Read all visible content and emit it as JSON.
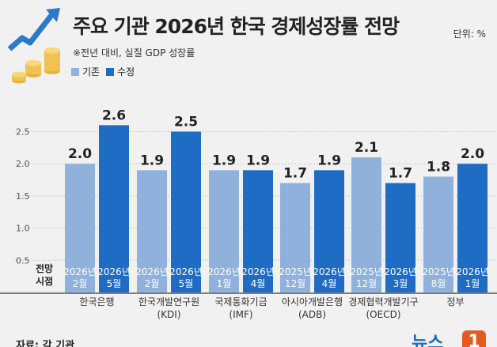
{
  "header": {
    "title": "주요 기관 2026년 한국 경제성장률 전망",
    "subtitle": "※전년 대비, 실질 GDP 성장률",
    "unit": "단위: %",
    "source": "자료: 각 기관",
    "logo_text": "뉴스",
    "logo_mark": "1"
  },
  "colors": {
    "prev": "#8fb1dc",
    "revised": "#1f6cc4",
    "background": "#f1f1f2"
  },
  "chart_data": {
    "type": "bar",
    "title": "주요 기관 2026년 한국 경제성장률 전망",
    "ylim": [
      0,
      3.0
    ],
    "yticks": [
      "0.5",
      "1.0",
      "1.5",
      "2.0",
      "2.5"
    ],
    "grid": true,
    "legend_position": "top-left",
    "row_label_lines": [
      "전망",
      "시점"
    ],
    "series": [
      {
        "name": "기존",
        "color": "#8fb1dc"
      },
      {
        "name": "수정",
        "color": "#1f6cc4"
      }
    ],
    "groups": [
      {
        "label": [
          "한국은행"
        ],
        "bars": [
          {
            "value": 2.0,
            "label": "2.0",
            "date": [
              "2026년",
              "2월"
            ]
          },
          {
            "value": 2.6,
            "label": "2.6",
            "date": [
              "2026년",
              "5월"
            ]
          }
        ]
      },
      {
        "label": [
          "한국개발연구원",
          "(KDI)"
        ],
        "bars": [
          {
            "value": 1.9,
            "label": "1.9",
            "date": [
              "2026년",
              "2월"
            ]
          },
          {
            "value": 2.5,
            "label": "2.5",
            "date": [
              "2026년",
              "5월"
            ]
          }
        ]
      },
      {
        "label": [
          "국제통화기금",
          "(IMF)"
        ],
        "bars": [
          {
            "value": 1.9,
            "label": "1.9",
            "date": [
              "2026년",
              "1월"
            ]
          },
          {
            "value": 1.9,
            "label": "1.9",
            "date": [
              "2026년",
              "4월"
            ]
          }
        ]
      },
      {
        "label": [
          "아시아개발은행",
          "(ADB)"
        ],
        "bars": [
          {
            "value": 1.7,
            "label": "1.7",
            "date": [
              "2025년",
              "12월"
            ]
          },
          {
            "value": 1.9,
            "label": "1.9",
            "date": [
              "2026년",
              "4월"
            ]
          }
        ]
      },
      {
        "label": [
          "경제협력개발기구",
          "(OECD)"
        ],
        "bars": [
          {
            "value": 2.1,
            "label": "2.1",
            "date": [
              "2025년",
              "12월"
            ]
          },
          {
            "value": 1.7,
            "label": "1.7",
            "date": [
              "2026년",
              "3월"
            ]
          }
        ]
      },
      {
        "label": [
          "정부"
        ],
        "bars": [
          {
            "value": 1.8,
            "label": "1.8",
            "date": [
              "2025년",
              "8월"
            ]
          },
          {
            "value": 2.0,
            "label": "2.0",
            "date": [
              "2026년",
              "1월"
            ]
          }
        ]
      }
    ]
  }
}
